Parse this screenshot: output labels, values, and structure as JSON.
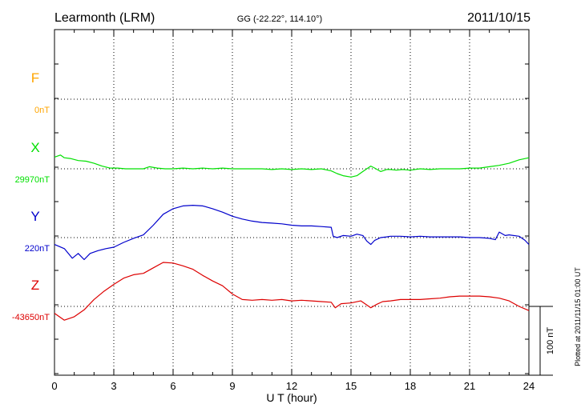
{
  "header": {
    "station": "Learmonth (LRM)",
    "coords": "GG (-22.22°, 114.10°)",
    "date": "2011/10/15"
  },
  "footer": {
    "plotted": "Plotted at 2011/11/15 01:00 UT"
  },
  "chart_data": {
    "type": "line",
    "xlabel": "U T (hour)",
    "xlim": [
      0,
      24
    ],
    "xticks": [
      0,
      3,
      6,
      9,
      12,
      15,
      18,
      21,
      24
    ],
    "xtick_labels": [
      "0",
      "3",
      "6",
      "9",
      "12",
      "15",
      "18",
      "21",
      "24"
    ],
    "y_unit": "nT",
    "scale_bar": {
      "value": 100,
      "label": "100 nT"
    },
    "grid": true,
    "series": [
      {
        "name": "F",
        "baseline_label": "0nT",
        "baseline": 0,
        "color": "#FFA500",
        "x": [],
        "y": []
      },
      {
        "name": "X",
        "baseline_label": "29970nT",
        "baseline": 29970,
        "color": "#00E000",
        "x": [
          0,
          0.3,
          0.5,
          0.8,
          1.2,
          1.6,
          2,
          2.4,
          2.8,
          3.2,
          3.6,
          4,
          4.5,
          4.8,
          5.2,
          5.6,
          6,
          6.5,
          7,
          7.5,
          8,
          8.5,
          9,
          9.5,
          10,
          10.5,
          11,
          11.5,
          12,
          12.5,
          13,
          13.5,
          14,
          14.3,
          14.6,
          15,
          15.3,
          15.6,
          15.8,
          16,
          16.2,
          16.5,
          16.8,
          17,
          17.3,
          17.6,
          18,
          18.5,
          19,
          19.5,
          20,
          20.5,
          21,
          21.5,
          22,
          22.5,
          23,
          23.5,
          24
        ],
        "y": [
          29987,
          29990,
          29986,
          29985,
          29982,
          29981,
          29978,
          29974,
          29971,
          29971,
          29970,
          29970,
          29970,
          29973,
          29971,
          29970,
          29970,
          29971,
          29970,
          29971,
          29970,
          29971,
          29970,
          29970,
          29970,
          29970,
          29969,
          29970,
          29969,
          29970,
          29969,
          29970,
          29967,
          29963,
          29960,
          29958,
          29960,
          29966,
          29970,
          29974,
          29971,
          29966,
          29969,
          29969,
          29968,
          29969,
          29968,
          29970,
          29969,
          29970,
          29970,
          29970,
          29971,
          29971,
          29973,
          29975,
          29978,
          29983,
          29986
        ]
      },
      {
        "name": "Y",
        "baseline_label": "220nT",
        "baseline": 220,
        "color": "#0000CC",
        "x": [
          0,
          0.5,
          0.9,
          1.2,
          1.5,
          1.8,
          2.2,
          2.6,
          3,
          3.5,
          4,
          4.5,
          5,
          5.5,
          6,
          6.5,
          7,
          7.5,
          8,
          8.5,
          9,
          9.5,
          10,
          10.5,
          11,
          11.5,
          12,
          12.5,
          13,
          13.5,
          14,
          14.1,
          14.3,
          14.6,
          15,
          15.3,
          15.6,
          15.8,
          16,
          16.2,
          16.5,
          16.8,
          17,
          17.5,
          18,
          18.5,
          19,
          19.5,
          20,
          20.5,
          21,
          21.5,
          22,
          22.3,
          22.5,
          22.8,
          23,
          23.5,
          23.8,
          24
        ],
        "y": [
          210,
          204,
          190,
          197,
          188,
          197,
          201,
          204,
          206,
          213,
          219,
          224,
          238,
          254,
          262,
          266,
          267,
          266,
          262,
          257,
          251,
          247,
          244,
          242,
          241,
          240,
          238,
          237,
          237,
          236,
          235,
          222,
          220,
          223,
          222,
          225,
          223,
          215,
          210,
          216,
          220,
          221,
          222,
          222,
          221,
          222,
          221,
          221,
          221,
          221,
          220,
          220,
          219,
          217,
          228,
          223,
          224,
          222,
          216,
          210
        ]
      },
      {
        "name": "Z",
        "baseline_label": "-43650nT",
        "baseline": -43650,
        "color": "#DD0000",
        "x": [
          0,
          0.5,
          1,
          1.5,
          2,
          2.5,
          3,
          3.5,
          4,
          4.5,
          5,
          5.5,
          6,
          6.5,
          7,
          7.5,
          8,
          8.5,
          9,
          9.5,
          10,
          10.5,
          11,
          11.5,
          12,
          12.5,
          13,
          13.5,
          14,
          14.2,
          14.5,
          15,
          15.5,
          16,
          16.3,
          16.6,
          17,
          17.5,
          18,
          18.5,
          19,
          19.5,
          20,
          20.5,
          21,
          21.5,
          22,
          22.5,
          23,
          23.5,
          24
        ],
        "y": [
          -43660,
          -43670,
          -43665,
          -43655,
          -43640,
          -43628,
          -43618,
          -43609,
          -43604,
          -43602,
          -43594,
          -43586,
          -43587,
          -43591,
          -43596,
          -43605,
          -43613,
          -43620,
          -43632,
          -43640,
          -43641,
          -43640,
          -43641,
          -43640,
          -43642,
          -43641,
          -43642,
          -43643,
          -43644,
          -43652,
          -43646,
          -43645,
          -43642,
          -43652,
          -43647,
          -43643,
          -43642,
          -43640,
          -43640,
          -43640,
          -43639,
          -43638,
          -43636,
          -43635,
          -43635,
          -43635,
          -43636,
          -43638,
          -43642,
          -43650,
          -43656
        ]
      }
    ]
  }
}
